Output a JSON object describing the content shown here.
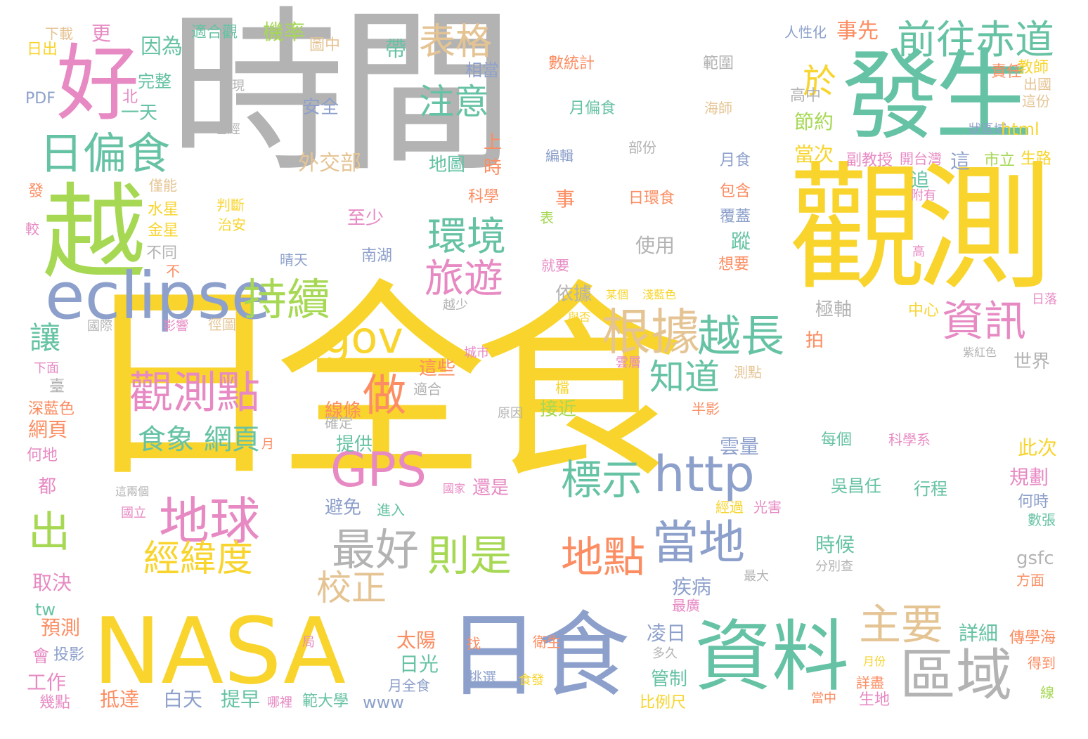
{
  "palette": {
    "yellow": "#f8d42c",
    "gray": "#b3b3b3",
    "green": "#66c2a5",
    "pink": "#e78ac3",
    "lime": "#a6d854",
    "blue": "#8da0cb",
    "tan": "#e5c494",
    "orange": "#fc8d62"
  },
  "words": [
    {
      "text": "日全食",
      "color": "yellow"
    },
    {
      "text": "時間",
      "color": "gray"
    },
    {
      "text": "觀測",
      "color": "yellow"
    },
    {
      "text": "發生",
      "color": "green"
    },
    {
      "text": "NASA",
      "color": "yellow"
    },
    {
      "text": "日食",
      "color": "blue"
    },
    {
      "text": "資料",
      "color": "green"
    },
    {
      "text": "越",
      "color": "lime"
    },
    {
      "text": "好",
      "color": "pink"
    },
    {
      "text": "eclipse",
      "color": "blue"
    },
    {
      "text": "日偏食",
      "color": "green"
    },
    {
      "text": "區域",
      "color": "gray"
    },
    {
      "text": "觀測點",
      "color": "pink"
    },
    {
      "text": "地球",
      "color": "pink"
    },
    {
      "text": "經緯度",
      "color": "yellow"
    },
    {
      "text": "GPS",
      "color": "pink"
    },
    {
      "text": "http",
      "color": "blue"
    },
    {
      "text": "當地",
      "color": "blue"
    },
    {
      "text": "根據",
      "color": "tan"
    },
    {
      "text": "越長",
      "color": "green"
    },
    {
      "text": "前往赤道",
      "color": "green"
    },
    {
      "text": "持續",
      "color": "lime"
    },
    {
      "text": "gov",
      "color": "yellow"
    },
    {
      "text": "做",
      "color": "orange"
    },
    {
      "text": "資訊",
      "color": "pink"
    },
    {
      "text": "主要",
      "color": "tan"
    },
    {
      "text": "環境",
      "color": "green"
    },
    {
      "text": "旅遊",
      "color": "pink"
    },
    {
      "text": "表格",
      "color": "tan"
    },
    {
      "text": "於",
      "color": "yellow"
    },
    {
      "text": "注意",
      "color": "green"
    },
    {
      "text": "最好",
      "color": "gray"
    },
    {
      "text": "則是",
      "color": "lime"
    },
    {
      "text": "地點",
      "color": "orange"
    },
    {
      "text": "標示",
      "color": "green"
    },
    {
      "text": "知道",
      "color": "green"
    },
    {
      "text": "出",
      "color": "lime"
    },
    {
      "text": "讓",
      "color": "green"
    },
    {
      "text": "校正",
      "color": "tan"
    },
    {
      "text": "食象",
      "color": "green"
    },
    {
      "text": "網頁",
      "color": "green"
    },
    {
      "text": "下載",
      "color": "tan"
    },
    {
      "text": "更",
      "color": "pink"
    },
    {
      "text": "適合觀",
      "color": "green"
    },
    {
      "text": "機率",
      "color": "lime"
    },
    {
      "text": "人性化",
      "color": "blue"
    },
    {
      "text": "事先",
      "color": "orange"
    },
    {
      "text": "日出",
      "color": "yellow"
    },
    {
      "text": "因為",
      "color": "green"
    },
    {
      "text": "圖中",
      "color": "tan"
    },
    {
      "text": "帶",
      "color": "green"
    },
    {
      "text": "數統計",
      "color": "orange"
    },
    {
      "text": "範圍",
      "color": "gray"
    },
    {
      "text": "責任",
      "color": "orange"
    },
    {
      "text": "教師",
      "color": "yellow"
    },
    {
      "text": "出國",
      "color": "tan"
    },
    {
      "text": "這份",
      "color": "tan"
    },
    {
      "text": "PDF",
      "color": "blue"
    },
    {
      "text": "完整",
      "color": "green"
    },
    {
      "text": "北",
      "color": "pink"
    },
    {
      "text": "一天",
      "color": "green"
    },
    {
      "text": "出現",
      "color": "gray"
    },
    {
      "text": "已經",
      "color": "gray"
    },
    {
      "text": "相當",
      "color": "blue"
    },
    {
      "text": "安全",
      "color": "blue"
    },
    {
      "text": "月偏食",
      "color": "green"
    },
    {
      "text": "海師",
      "color": "tan"
    },
    {
      "text": "高中",
      "color": "gray"
    },
    {
      "text": "節約",
      "color": "lime"
    },
    {
      "text": "狀區域",
      "color": "blue"
    },
    {
      "text": "html",
      "color": "yellow"
    },
    {
      "text": "當次",
      "color": "yellow"
    },
    {
      "text": "副教授",
      "color": "pink"
    },
    {
      "text": "開台灣",
      "color": "pink"
    },
    {
      "text": "市立",
      "color": "lime"
    },
    {
      "text": "生路",
      "color": "yellow"
    },
    {
      "text": "這",
      "color": "blue"
    },
    {
      "text": "外交部",
      "color": "tan"
    },
    {
      "text": "地圖",
      "color": "green"
    },
    {
      "text": "上",
      "color": "orange"
    },
    {
      "text": "時",
      "color": "orange"
    },
    {
      "text": "編輯",
      "color": "blue"
    },
    {
      "text": "部份",
      "color": "gray"
    },
    {
      "text": "月食",
      "color": "blue"
    },
    {
      "text": "發",
      "color": "orange"
    },
    {
      "text": "僅能",
      "color": "tan"
    },
    {
      "text": "科學",
      "color": "orange"
    },
    {
      "text": "日環食",
      "color": "orange"
    },
    {
      "text": "包含",
      "color": "orange"
    },
    {
      "text": "追",
      "color": "green"
    },
    {
      "text": "附有",
      "color": "pink"
    },
    {
      "text": "水星",
      "color": "yellow"
    },
    {
      "text": "判斷",
      "color": "yellow"
    },
    {
      "text": "治安",
      "color": "yellow"
    },
    {
      "text": "事",
      "color": "orange"
    },
    {
      "text": "表",
      "color": "lime"
    },
    {
      "text": "覆蓋",
      "color": "blue"
    },
    {
      "text": "較",
      "color": "pink"
    },
    {
      "text": "金星",
      "color": "yellow"
    },
    {
      "text": "至少",
      "color": "pink"
    },
    {
      "text": "使用",
      "color": "gray"
    },
    {
      "text": "蹤",
      "color": "green"
    },
    {
      "text": "不同",
      "color": "gray"
    },
    {
      "text": "南湖",
      "color": "blue"
    },
    {
      "text": "晴天",
      "color": "blue"
    },
    {
      "text": "就要",
      "color": "pink"
    },
    {
      "text": "想要",
      "color": "orange"
    },
    {
      "text": "高",
      "color": "pink"
    },
    {
      "text": "不",
      "color": "orange"
    },
    {
      "text": "某個",
      "color": "yellow"
    },
    {
      "text": "淺藍色",
      "color": "yellow"
    },
    {
      "text": "依據",
      "color": "gray"
    },
    {
      "text": "越少",
      "color": "gray"
    },
    {
      "text": "極軸",
      "color": "gray"
    },
    {
      "text": "中心",
      "color": "yellow"
    },
    {
      "text": "日落",
      "color": "pink"
    },
    {
      "text": "國際",
      "color": "gray"
    },
    {
      "text": "影響",
      "color": "pink"
    },
    {
      "text": "徑圖",
      "color": "tan"
    },
    {
      "text": "與否",
      "color": "yellow"
    },
    {
      "text": "拍",
      "color": "orange"
    },
    {
      "text": "城市",
      "color": "pink"
    },
    {
      "text": "雲層",
      "color": "pink"
    },
    {
      "text": "測點",
      "color": "tan"
    },
    {
      "text": "世界",
      "color": "gray"
    },
    {
      "text": "紫紅色",
      "color": "gray"
    },
    {
      "text": "下面",
      "color": "pink"
    },
    {
      "text": "這些",
      "color": "orange"
    },
    {
      "text": "適合",
      "color": "gray"
    },
    {
      "text": "檔",
      "color": "yellow"
    },
    {
      "text": "半影",
      "color": "orange"
    },
    {
      "text": "臺",
      "color": "gray"
    },
    {
      "text": "深藍色",
      "color": "orange"
    },
    {
      "text": "線條",
      "color": "orange"
    },
    {
      "text": "原因",
      "color": "gray"
    },
    {
      "text": "接近",
      "color": "lime"
    },
    {
      "text": "網頁",
      "color": "orange"
    },
    {
      "text": "確定",
      "color": "gray"
    },
    {
      "text": "人",
      "color": "yellow"
    },
    {
      "text": "月",
      "color": "orange"
    },
    {
      "text": "提供",
      "color": "green"
    },
    {
      "text": "雲量",
      "color": "blue"
    },
    {
      "text": "每個",
      "color": "green"
    },
    {
      "text": "科學系",
      "color": "pink"
    },
    {
      "text": "此次",
      "color": "yellow"
    },
    {
      "text": "何地",
      "color": "pink"
    },
    {
      "text": "都",
      "color": "pink"
    },
    {
      "text": "這兩個",
      "color": "gray"
    },
    {
      "text": "國家",
      "color": "pink"
    },
    {
      "text": "還是",
      "color": "pink"
    },
    {
      "text": "吳昌任",
      "color": "green"
    },
    {
      "text": "行程",
      "color": "green"
    },
    {
      "text": "規劃",
      "color": "pink"
    },
    {
      "text": "國立",
      "color": "pink"
    },
    {
      "text": "避免",
      "color": "blue"
    },
    {
      "text": "進入",
      "color": "green"
    },
    {
      "text": "經過",
      "color": "yellow"
    },
    {
      "text": "光害",
      "color": "pink"
    },
    {
      "text": "何時",
      "color": "blue"
    },
    {
      "text": "數張",
      "color": "green"
    },
    {
      "text": "時候",
      "color": "green"
    },
    {
      "text": "gsfc",
      "color": "gray"
    },
    {
      "text": "分別查",
      "color": "gray"
    },
    {
      "text": "最大",
      "color": "gray"
    },
    {
      "text": "方面",
      "color": "orange"
    },
    {
      "text": "取決",
      "color": "pink"
    },
    {
      "text": "疾病",
      "color": "blue"
    },
    {
      "text": "tw",
      "color": "green"
    },
    {
      "text": "最廣",
      "color": "pink"
    },
    {
      "text": "預測",
      "color": "orange"
    },
    {
      "text": "凌日",
      "color": "blue"
    },
    {
      "text": "多久",
      "color": "gray"
    },
    {
      "text": "詳細",
      "color": "green"
    },
    {
      "text": "衛生",
      "color": "orange"
    },
    {
      "text": "局",
      "color": "pink"
    },
    {
      "text": "找",
      "color": "orange"
    },
    {
      "text": "太陽",
      "color": "orange"
    },
    {
      "text": "傳學海",
      "color": "orange"
    },
    {
      "text": "得到",
      "color": "orange"
    },
    {
      "text": "會",
      "color": "pink"
    },
    {
      "text": "投影",
      "color": "blue"
    },
    {
      "text": "日光",
      "color": "green"
    },
    {
      "text": "挑選",
      "color": "blue"
    },
    {
      "text": "管制",
      "color": "green"
    },
    {
      "text": "月份",
      "color": "yellow"
    },
    {
      "text": "工作",
      "color": "pink"
    },
    {
      "text": "月全食",
      "color": "blue"
    },
    {
      "text": "食發",
      "color": "yellow"
    },
    {
      "text": "詳盡",
      "color": "orange"
    },
    {
      "text": "線",
      "color": "lime"
    },
    {
      "text": "幾點",
      "color": "pink"
    },
    {
      "text": "抵達",
      "color": "orange"
    },
    {
      "text": "白天",
      "color": "blue"
    },
    {
      "text": "提早",
      "color": "green"
    },
    {
      "text": "www",
      "color": "blue"
    },
    {
      "text": "哪裡",
      "color": "pink"
    },
    {
      "text": "範大學",
      "color": "green"
    },
    {
      "text": "比例尺",
      "color": "yellow"
    },
    {
      "text": "當中",
      "color": "orange"
    },
    {
      "text": "生地",
      "color": "pink"
    }
  ]
}
